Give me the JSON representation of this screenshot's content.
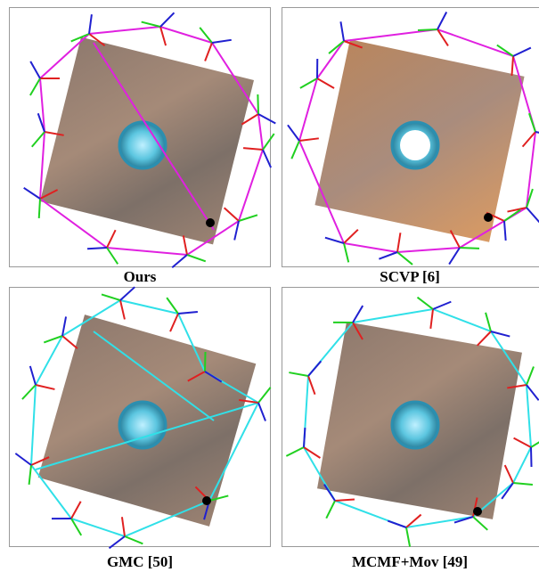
{
  "panels": [
    {
      "caption": "Ours"
    },
    {
      "caption": "SCVP [6]"
    },
    {
      "caption": "GMC [50]"
    },
    {
      "caption": "MCMF+Mov [49]"
    }
  ]
}
